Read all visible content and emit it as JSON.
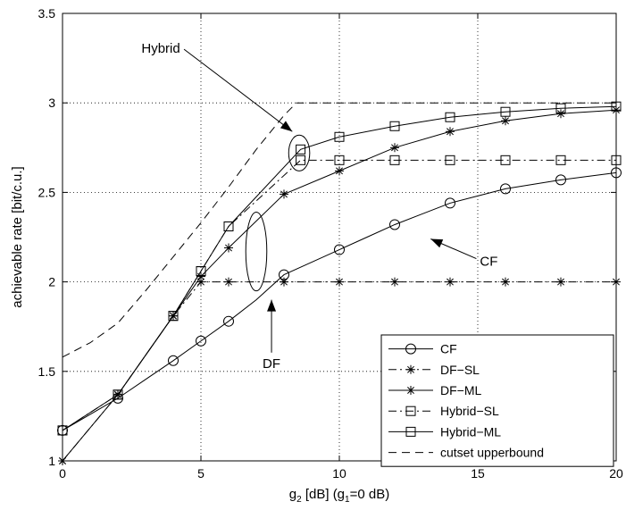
{
  "chart_data": {
    "type": "line",
    "title": "",
    "xlabel": {
      "main": "g",
      "sub2": "2",
      "mid": " [dB] (g",
      "sub1": "1",
      "tail": "=0 dB)"
    },
    "ylabel": "achievable rate [bit/c.u.]",
    "xlim": [
      0,
      20
    ],
    "ylim": [
      1,
      3.5
    ],
    "xticks": [
      0,
      5,
      10,
      15,
      20
    ],
    "yticks": [
      1,
      1.5,
      2,
      2.5,
      3,
      3.5
    ],
    "xtick_labels": [
      "0",
      "5",
      "10",
      "15",
      "20"
    ],
    "ytick_labels": [
      "1",
      "1.5",
      "2",
      "2.5",
      "3",
      "3.5"
    ],
    "grid": true,
    "legend_position": "bottom-right",
    "series": [
      {
        "name": "CF",
        "line": "solid",
        "marker": "circle",
        "x": [
          0,
          2,
          4,
          5,
          6,
          8,
          10,
          12,
          14,
          16,
          18,
          20
        ],
        "y": [
          1.17,
          1.35,
          1.56,
          1.67,
          1.78,
          2.04,
          2.18,
          2.32,
          2.44,
          2.52,
          2.57,
          2.61
        ],
        "curve_x": [
          0,
          1,
          2,
          3,
          4,
          5,
          6,
          7,
          8,
          9,
          10,
          11,
          12,
          13,
          14,
          15,
          16,
          17,
          18,
          19,
          20
        ],
        "curve_y": [
          1.17,
          1.26,
          1.35,
          1.455,
          1.56,
          1.67,
          1.78,
          1.9,
          2.04,
          2.11,
          2.18,
          2.25,
          2.32,
          2.38,
          2.44,
          2.48,
          2.52,
          2.545,
          2.57,
          2.59,
          2.61
        ]
      },
      {
        "name": "DF−SL",
        "line": "dashdot",
        "marker": "star",
        "x": [
          0,
          2,
          4,
          5,
          6,
          8,
          10,
          12,
          14,
          16,
          18,
          20
        ],
        "y": [
          1.0,
          1.37,
          1.81,
          2.0,
          2.0,
          2.0,
          2.0,
          2.0,
          2.0,
          2.0,
          2.0,
          2.0
        ]
      },
      {
        "name": "DF−ML",
        "line": "solid",
        "marker": "star",
        "x": [
          0,
          2,
          4,
          5,
          6,
          8,
          10,
          12,
          14,
          16,
          18,
          20
        ],
        "y": [
          1.0,
          1.37,
          1.81,
          2.03,
          2.19,
          2.49,
          2.62,
          2.75,
          2.84,
          2.9,
          2.94,
          2.96
        ]
      },
      {
        "name": "Hybrid−SL",
        "line": "dashdot",
        "marker": "square",
        "x": [
          0,
          2,
          4,
          5,
          6,
          8.6,
          10,
          12,
          14,
          16,
          18,
          20
        ],
        "y": [
          1.17,
          1.37,
          1.81,
          2.06,
          2.31,
          2.68,
          2.68,
          2.68,
          2.68,
          2.68,
          2.68,
          2.68
        ]
      },
      {
        "name": "Hybrid−ML",
        "line": "solid",
        "marker": "square",
        "x": [
          0,
          2,
          4,
          5,
          6,
          8.6,
          10,
          12,
          14,
          16,
          18,
          20
        ],
        "y": [
          1.17,
          1.37,
          1.81,
          2.06,
          2.31,
          2.74,
          2.81,
          2.87,
          2.92,
          2.95,
          2.97,
          2.98
        ]
      },
      {
        "name": "cutset upperbound",
        "line": "dashed",
        "marker": "none",
        "x": [
          0,
          1,
          2,
          3,
          4,
          5,
          6,
          7,
          8,
          8.45,
          9,
          10,
          12,
          14,
          16,
          18,
          20
        ],
        "y": [
          1.58,
          1.66,
          1.77,
          1.95,
          2.14,
          2.33,
          2.53,
          2.74,
          2.93,
          3.0,
          3.0,
          3.0,
          3.0,
          3.0,
          3.0,
          3.0,
          3.0
        ]
      }
    ],
    "annotations": [
      {
        "text": "Hybrid",
        "text_x": 3.55,
        "text_y": 3.28,
        "arrow_to_x": 8.3,
        "arrow_to_y": 2.84
      },
      {
        "text": "CF",
        "text_x": 15.4,
        "text_y": 2.09,
        "arrow_to_x": 13.3,
        "arrow_to_y": 2.24
      },
      {
        "text": "DF",
        "text_x": 7.55,
        "text_y": 1.52,
        "arrow_to_x": 7.55,
        "arrow_to_y": 1.9
      }
    ],
    "ellipses": [
      {
        "cx": 8.55,
        "cy": 2.72,
        "rx": 0.38,
        "ry": 0.1
      },
      {
        "cx": 7.0,
        "cy": 2.17,
        "rx": 0.38,
        "ry": 0.22
      }
    ]
  }
}
